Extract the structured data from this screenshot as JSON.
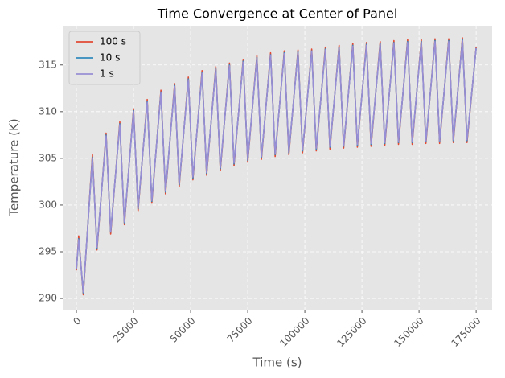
{
  "chart_data": {
    "type": "line",
    "title": "Time Convergence at Center of Panel",
    "x_label": "Time (s)",
    "y_label": "Temperature (K)",
    "x": [
      0,
      1000,
      3000,
      7000,
      9000,
      13000,
      15000,
      19000,
      21000,
      25000,
      27000,
      31000,
      33000,
      37000,
      39000,
      43000,
      45000,
      49000,
      51000,
      55000,
      57000,
      61000,
      63000,
      67000,
      69000,
      73000,
      75000,
      79000,
      81000,
      85000,
      87000,
      91000,
      93000,
      97000,
      99000,
      103000,
      105000,
      109000,
      111000,
      115000,
      117000,
      121000,
      123000,
      127000,
      129000,
      133000,
      135000,
      139000,
      141000,
      145000,
      147000,
      151000,
      153000,
      157000,
      159000,
      163000,
      165000,
      169000,
      171000,
      175000
    ],
    "series": [
      {
        "name": "100 s",
        "color": "#E24A33",
        "values": [
          293.0,
          296.7,
          290.4,
          305.4,
          295.2,
          307.7,
          296.9,
          308.9,
          297.9,
          310.3,
          299.4,
          311.3,
          300.2,
          312.3,
          301.2,
          313.0,
          302.0,
          313.7,
          302.7,
          314.4,
          303.2,
          314.8,
          303.7,
          315.2,
          304.2,
          315.6,
          304.6,
          316.0,
          304.9,
          316.3,
          305.2,
          316.5,
          305.4,
          316.6,
          305.6,
          316.7,
          305.8,
          316.9,
          306.0,
          317.1,
          306.1,
          317.3,
          306.2,
          317.4,
          306.3,
          317.5,
          306.4,
          317.6,
          306.5,
          317.7,
          306.5,
          317.7,
          306.6,
          317.8,
          306.6,
          317.8,
          306.7,
          317.9,
          306.7,
          316.9
        ]
      },
      {
        "name": "10 s",
        "color": "#348ABD",
        "values": [
          293.1,
          296.4,
          290.6,
          305.1,
          295.4,
          307.5,
          297.1,
          308.7,
          298.1,
          310.1,
          299.6,
          311.1,
          300.4,
          312.1,
          301.4,
          312.8,
          302.2,
          313.5,
          302.9,
          314.2,
          303.4,
          314.6,
          303.9,
          315.0,
          304.4,
          315.4,
          304.8,
          315.8,
          305.1,
          316.1,
          305.4,
          316.3,
          305.6,
          316.4,
          305.8,
          316.5,
          306.0,
          316.7,
          306.2,
          316.9,
          306.3,
          317.1,
          306.4,
          317.2,
          306.5,
          317.3,
          306.6,
          317.4,
          306.7,
          317.5,
          306.7,
          317.5,
          306.8,
          317.6,
          306.8,
          317.6,
          306.9,
          317.7,
          306.9,
          316.8
        ]
      },
      {
        "name": "1 s",
        "color": "#988ED5",
        "values": [
          293.2,
          296.3,
          290.7,
          305.0,
          295.5,
          307.4,
          297.2,
          308.6,
          298.2,
          310.0,
          299.7,
          311.0,
          300.5,
          312.0,
          301.5,
          312.7,
          302.3,
          313.4,
          303.0,
          314.1,
          303.5,
          314.5,
          304.0,
          314.9,
          304.5,
          315.3,
          304.9,
          315.7,
          305.2,
          316.0,
          305.5,
          316.2,
          305.7,
          316.3,
          305.9,
          316.4,
          306.1,
          316.6,
          306.3,
          316.8,
          306.4,
          317.0,
          306.5,
          317.1,
          306.6,
          317.2,
          306.7,
          317.3,
          306.8,
          317.4,
          306.8,
          317.4,
          306.9,
          317.5,
          306.9,
          317.5,
          307.0,
          317.6,
          307.0,
          316.8
        ]
      }
    ],
    "xlim": [
      -6000,
      182000
    ],
    "xticks": [
      0,
      25000,
      50000,
      75000,
      100000,
      125000,
      150000,
      175000
    ],
    "ylim": [
      288.8,
      319.2
    ],
    "yticks": [
      290,
      295,
      300,
      305,
      310,
      315
    ],
    "grid": true,
    "legend": "upper left"
  }
}
